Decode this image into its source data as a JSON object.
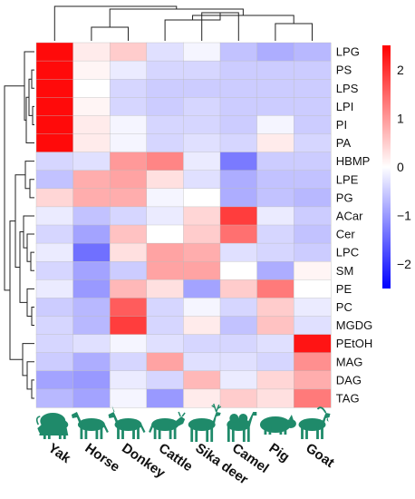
{
  "chart_data": {
    "type": "heatmap",
    "title": "",
    "xlabel": "",
    "ylabel": "",
    "columns": [
      "Yak",
      "Horse",
      "Donkey",
      "Cattle",
      "Sika deer",
      "Camel",
      "Pig",
      "Goat"
    ],
    "rows": [
      "LPG",
      "PS",
      "LPS",
      "LPI",
      "PI",
      "PA",
      "HBMP",
      "LPE",
      "PG",
      "ACar",
      "Cer",
      "LPC",
      "SM",
      "PE",
      "PC",
      "MGDG",
      "PEtOH",
      "MAG",
      "DAG",
      "TAG"
    ],
    "values": [
      [
        2.4,
        0.2,
        0.5,
        -0.3,
        -0.1,
        -0.6,
        -0.8,
        -0.7
      ],
      [
        2.4,
        0.1,
        -0.2,
        -0.4,
        -0.4,
        -0.5,
        -0.5,
        -0.5
      ],
      [
        2.4,
        0.0,
        -0.4,
        -0.5,
        -0.5,
        -0.5,
        -0.5,
        -0.5
      ],
      [
        2.4,
        0.1,
        -0.4,
        -0.5,
        -0.4,
        -0.5,
        -0.5,
        -0.5
      ],
      [
        2.4,
        0.2,
        -0.1,
        -0.4,
        -0.4,
        -0.5,
        -0.1,
        -0.5
      ],
      [
        2.4,
        0.2,
        -0.1,
        -0.4,
        -0.3,
        -0.4,
        0.2,
        -0.4
      ],
      [
        -0.4,
        -0.3,
        1.0,
        1.2,
        -0.2,
        -1.3,
        -0.5,
        -0.5
      ],
      [
        -0.6,
        0.8,
        0.9,
        0.3,
        -0.3,
        -0.8,
        -0.6,
        -0.6
      ],
      [
        0.4,
        0.8,
        0.8,
        -0.1,
        0.0,
        -0.8,
        -0.6,
        -0.7
      ],
      [
        -0.2,
        -0.6,
        -0.4,
        -0.2,
        0.4,
        1.9,
        -0.2,
        -0.5
      ],
      [
        -0.4,
        -0.9,
        0.6,
        0.0,
        0.5,
        1.4,
        -0.4,
        -0.6
      ],
      [
        -0.2,
        -1.4,
        0.3,
        0.9,
        0.8,
        -0.3,
        -0.4,
        -0.5
      ],
      [
        -0.4,
        -0.9,
        -0.5,
        0.9,
        0.9,
        0.0,
        -0.8,
        0.1
      ],
      [
        -0.2,
        -1.0,
        0.7,
        0.3,
        -0.9,
        0.5,
        1.3,
        0.0
      ],
      [
        -0.5,
        -0.7,
        1.6,
        -0.4,
        -0.1,
        -0.4,
        0.5,
        -0.2
      ],
      [
        -0.4,
        -0.7,
        1.9,
        -0.4,
        0.2,
        -0.6,
        0.6,
        -0.3
      ],
      [
        -0.4,
        -0.3,
        -0.1,
        -0.3,
        -0.4,
        -0.4,
        -0.3,
        2.3
      ],
      [
        -0.5,
        -0.8,
        -0.4,
        0.9,
        -0.3,
        -0.3,
        -0.4,
        1.1
      ],
      [
        -0.9,
        -1.0,
        -0.2,
        -0.4,
        0.7,
        -0.2,
        0.4,
        0.8
      ],
      [
        -0.7,
        -0.9,
        -0.1,
        -1.0,
        0.2,
        0.5,
        0.3,
        1.3
      ]
    ],
    "colorscale": {
      "min": -2.5,
      "max": 2.5,
      "colors": [
        "#0000ff",
        "#ffffff",
        "#ff0000"
      ],
      "ticks": [
        2,
        1,
        0,
        -1,
        -2
      ],
      "tick_labels": [
        "2",
        "1",
        "0",
        "−1",
        "−2"
      ]
    },
    "row_dendrogram": true,
    "column_dendrogram": true,
    "column_icons": [
      "yak-icon",
      "horse-icon",
      "donkey-icon",
      "cattle-icon",
      "sika-deer-icon",
      "camel-icon",
      "pig-icon",
      "goat-icon"
    ],
    "icon_color": "#1f8a6a"
  }
}
